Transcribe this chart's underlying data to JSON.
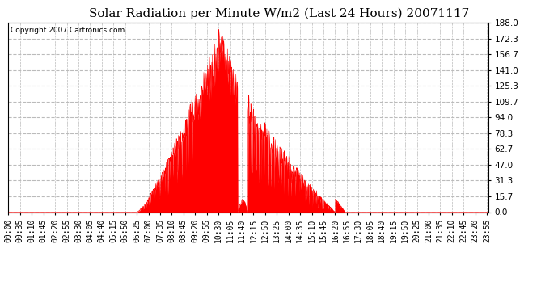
{
  "title": "Solar Radiation per Minute W/m2 (Last 24 Hours) 20071117",
  "copyright_text": "Copyright 2007 Cartronics.com",
  "bar_color": "#FF0000",
  "background_color": "#FFFFFF",
  "plot_bg_color": "#FFFFFF",
  "grid_color_h": "#BBBBBB",
  "grid_color_v": "#BBBBBB",
  "dashed_line_color": "#FF0000",
  "yticks": [
    0.0,
    15.7,
    31.3,
    47.0,
    62.7,
    78.3,
    94.0,
    109.7,
    125.3,
    141.0,
    156.7,
    172.3,
    188.0
  ],
  "ylim": [
    0,
    188.0
  ],
  "title_fontsize": 11,
  "tick_fontsize": 7,
  "num_minutes": 1440,
  "xtick_labels": [
    "00:00",
    "00:35",
    "01:10",
    "01:45",
    "02:20",
    "02:55",
    "03:30",
    "04:05",
    "04:40",
    "05:15",
    "05:50",
    "06:25",
    "07:00",
    "07:35",
    "08:10",
    "08:45",
    "09:20",
    "09:55",
    "10:30",
    "11:05",
    "11:40",
    "12:15",
    "12:50",
    "13:25",
    "14:00",
    "14:35",
    "15:10",
    "15:45",
    "16:20",
    "16:55",
    "17:30",
    "18:05",
    "18:40",
    "19:15",
    "19:50",
    "20:25",
    "21:00",
    "21:35",
    "22:10",
    "22:45",
    "23:20",
    "23:55"
  ]
}
